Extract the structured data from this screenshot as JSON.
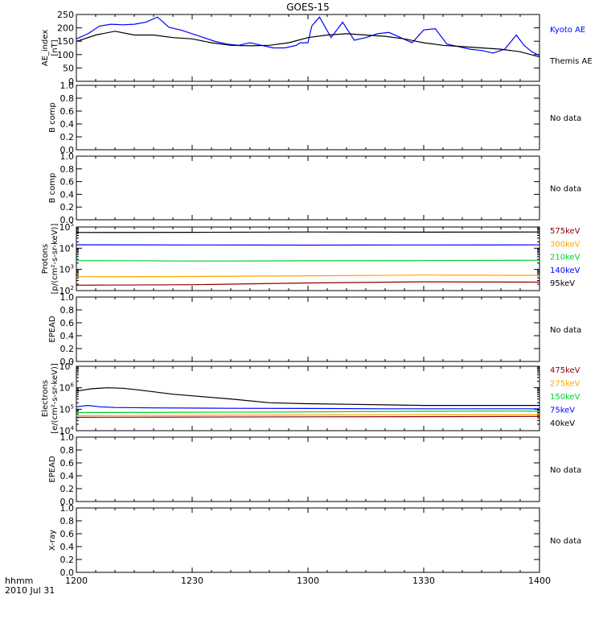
{
  "title": "GOES-15",
  "time_axis": {
    "ticks": [
      "1200",
      "1230",
      "1300",
      "1330",
      "1400"
    ],
    "label_top": "hhmm",
    "label_bottom": "2010 Jul 31"
  },
  "no_data_label": "No data",
  "chart_data": [
    {
      "type": "line",
      "ylabel": "AE_index",
      "yunit": "[nT]",
      "ylim": [
        0,
        260
      ],
      "yticks": [
        "0",
        "50",
        "100",
        "150",
        "200",
        "250"
      ],
      "legend": [
        {
          "label": "Kyoto AE",
          "color": "#0000ff"
        },
        {
          "label": "Themis AE",
          "color": "#000000"
        }
      ],
      "series": [
        {
          "name": "Kyoto AE",
          "color": "#0000ff",
          "x": [
            0,
            3,
            6,
            9,
            12,
            15,
            18,
            21,
            24,
            27,
            30,
            33,
            36,
            39,
            42,
            45,
            48,
            51,
            54,
            57,
            58,
            60,
            61,
            63,
            66,
            69,
            72,
            75,
            78,
            81,
            84,
            87,
            90,
            93,
            96,
            99,
            102,
            105,
            108,
            111,
            114,
            116,
            118,
            120
          ],
          "y": [
            165,
            185,
            215,
            222,
            220,
            222,
            230,
            250,
            210,
            200,
            185,
            170,
            155,
            145,
            140,
            150,
            140,
            130,
            130,
            140,
            150,
            150,
            215,
            250,
            170,
            230,
            160,
            170,
            185,
            190,
            170,
            150,
            200,
            205,
            145,
            135,
            125,
            120,
            110,
            125,
            180,
            140,
            115,
            100
          ]
        },
        {
          "name": "Themis AE",
          "color": "#000000",
          "x": [
            0,
            5,
            10,
            15,
            20,
            25,
            30,
            35,
            40,
            45,
            50,
            55,
            60,
            65,
            70,
            75,
            80,
            85,
            90,
            95,
            100,
            105,
            110,
            115,
            120
          ],
          "y": [
            155,
            180,
            195,
            180,
            180,
            170,
            165,
            150,
            140,
            138,
            140,
            150,
            170,
            180,
            185,
            180,
            175,
            165,
            150,
            140,
            135,
            130,
            125,
            115,
            95
          ]
        }
      ]
    },
    {
      "type": "line",
      "ylabel": "B comp",
      "ylim": [
        0,
        1
      ],
      "yticks": [
        "0.0",
        "0.2",
        "0.4",
        "0.6",
        "0.8",
        "1.0"
      ],
      "series": []
    },
    {
      "type": "line",
      "ylabel": "B comp",
      "ylim": [
        0,
        1
      ],
      "yticks": [
        "0.0",
        "0.2",
        "0.4",
        "0.6",
        "0.8",
        "1.0"
      ],
      "series": []
    },
    {
      "type": "line",
      "ylabel": "Protons",
      "yunit": "[p/(cm²-s-sr-keV)]",
      "yscale": "log",
      "ylim": [
        100,
        100000
      ],
      "yticks": [
        {
          "value": 100,
          "base": "10",
          "exp": "2"
        },
        {
          "value": 1000,
          "base": "10",
          "exp": "3"
        },
        {
          "value": 10000,
          "base": "10",
          "exp": "4"
        },
        {
          "value": 100000,
          "base": "10",
          "exp": "5"
        }
      ],
      "legend": [
        {
          "label": "575keV",
          "color": "#8b0000"
        },
        {
          "label": "300keV",
          "color": "#ffa500"
        },
        {
          "label": "210keV",
          "color": "#00cc33"
        },
        {
          "label": "140keV",
          "color": "#0000ff"
        },
        {
          "label": "95keV",
          "color": "#000000"
        }
      ],
      "series": [
        {
          "name": "95keV",
          "color": "#000000",
          "x": [
            0,
            30,
            60,
            90,
            120
          ],
          "y": [
            55000,
            56000,
            58000,
            57000,
            58000
          ]
        },
        {
          "name": "140keV",
          "color": "#0000ff",
          "x": [
            0,
            30,
            60,
            90,
            120
          ],
          "y": [
            14500,
            14200,
            14000,
            14200,
            14300
          ]
        },
        {
          "name": "210keV",
          "color": "#00cc33",
          "x": [
            0,
            30,
            60,
            90,
            120
          ],
          "y": [
            2600,
            2500,
            2550,
            2600,
            2700
          ]
        },
        {
          "name": "300keV",
          "color": "#ffa500",
          "x": [
            0,
            30,
            60,
            90,
            120
          ],
          "y": [
            450,
            460,
            500,
            540,
            520
          ]
        },
        {
          "name": "575keV",
          "color": "#8b0000",
          "x": [
            0,
            30,
            60,
            90,
            120
          ],
          "y": [
            180,
            190,
            230,
            260,
            250
          ]
        }
      ]
    },
    {
      "type": "line",
      "ylabel": "EPEAD",
      "ylim": [
        0,
        1
      ],
      "yticks": [
        "0.0",
        "0.2",
        "0.4",
        "0.6",
        "0.8",
        "1.0"
      ],
      "series": []
    },
    {
      "type": "line",
      "ylabel": "Electrons",
      "yunit": "[e/(cm²-s-sr-keV)]",
      "yscale": "log",
      "ylim": [
        10000,
        10000000
      ],
      "yticks": [
        {
          "value": 10000,
          "base": "10",
          "exp": "4"
        },
        {
          "value": 100000,
          "base": "10",
          "exp": "5"
        },
        {
          "value": 1000000,
          "base": "10",
          "exp": "6"
        },
        {
          "value": 10000000,
          "base": "10",
          "exp": "7"
        }
      ],
      "legend": [
        {
          "label": "475keV",
          "color": "#8b0000"
        },
        {
          "label": "275keV",
          "color": "#ffa500"
        },
        {
          "label": "150keV",
          "color": "#00cc33"
        },
        {
          "label": "75keV",
          "color": "#0000ff"
        },
        {
          "label": "40keV",
          "color": "#000000"
        }
      ],
      "series": [
        {
          "name": "40keV",
          "color": "#000000",
          "x": [
            0,
            4,
            8,
            12,
            16,
            20,
            25,
            30,
            40,
            50,
            60,
            70,
            80,
            90,
            100,
            110,
            120
          ],
          "y": [
            700000,
            900000,
            1000000,
            950000,
            800000,
            650000,
            500000,
            420000,
            300000,
            200000,
            180000,
            170000,
            160000,
            150000,
            150000,
            150000,
            150000
          ]
        },
        {
          "name": "75keV",
          "color": "#0000ff",
          "x": [
            0,
            3,
            6,
            10,
            20,
            40,
            60,
            80,
            100,
            120
          ],
          "y": [
            130000,
            150000,
            130000,
            120000,
            115000,
            110000,
            108000,
            105000,
            105000,
            105000
          ]
        },
        {
          "name": "150keV",
          "color": "#00cc33",
          "x": [
            0,
            30,
            60,
            90,
            120
          ],
          "y": [
            70000,
            72000,
            75000,
            80000,
            82000
          ]
        },
        {
          "name": "275keV",
          "color": "#ffa500",
          "x": [
            0,
            30,
            60,
            90,
            120
          ],
          "y": [
            50000,
            52000,
            54000,
            56000,
            56000
          ]
        },
        {
          "name": "475keV",
          "color": "#8b0000",
          "x": [
            0,
            30,
            60,
            90,
            120
          ],
          "y": [
            42000,
            43000,
            44000,
            45000,
            46000
          ]
        }
      ]
    },
    {
      "type": "line",
      "ylabel": "EPEAD",
      "ylim": [
        0,
        1
      ],
      "yticks": [
        "0.0",
        "0.2",
        "0.4",
        "0.6",
        "0.8",
        "1.0"
      ],
      "series": []
    },
    {
      "type": "line",
      "ylabel": "X-ray",
      "ylim": [
        0,
        1
      ],
      "yticks": [
        "0.0",
        "0.2",
        "0.4",
        "0.6",
        "0.8",
        "1.0"
      ],
      "series": []
    }
  ]
}
